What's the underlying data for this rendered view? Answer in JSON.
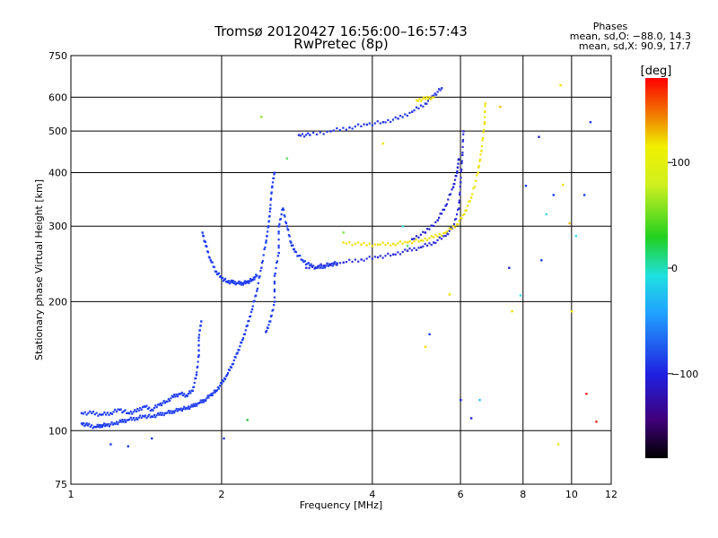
{
  "header": {
    "title_line1": "Tromsø 20120427 16:56:00–16:57:43",
    "title_line2": "RwPretec (8p)"
  },
  "phases_box": {
    "title": "Phases",
    "line_o": "mean, sd,O: −88.0, 14.3",
    "line_x": "mean, sd,X:  90.9, 17.7"
  },
  "colorbar": {
    "unit_label": "[deg]",
    "ticks": [
      {
        "label": "100",
        "value": 100
      },
      {
        "label": "0",
        "value": 0
      },
      {
        "label": "−100",
        "value": -100
      }
    ],
    "range": [
      -180,
      180
    ]
  },
  "chart_data": {
    "type": "scatter",
    "title": "Tromsø 20120427 16:56:00–16:57:43",
    "subtitle": "RwPretec (8p)",
    "xlabel": "Frequency [MHz]",
    "ylabel": "Stationary phase Virtual Height [km]",
    "x_scale": "log",
    "y_scale": "log",
    "xlim": [
      1,
      12
    ],
    "ylim": [
      75,
      750
    ],
    "x_ticks": [
      {
        "label": "1",
        "value": 1
      },
      {
        "label": "2",
        "value": 2
      },
      {
        "label": "4",
        "value": 4
      },
      {
        "label": "6",
        "value": 6
      },
      {
        "label": "8",
        "value": 8
      },
      {
        "label": "10",
        "value": 10
      },
      {
        "label": "12",
        "value": 12
      }
    ],
    "y_ticks": [
      {
        "label": "750",
        "value": 750
      },
      {
        "label": "600",
        "value": 600
      },
      {
        "label": "500",
        "value": 500
      },
      {
        "label": "400",
        "value": 400
      },
      {
        "label": "300",
        "value": 300
      },
      {
        "label": "200",
        "value": 200
      },
      {
        "label": "100",
        "value": 100
      },
      {
        "label": "75",
        "value": 75
      }
    ],
    "grid": true,
    "color_variable": "phase (deg)",
    "series": [
      {
        "color": "#1e3cf0",
        "phase": -95,
        "points": [
          [
            1.05,
            104
          ],
          [
            1.08,
            103
          ],
          [
            1.12,
            102
          ],
          [
            1.15,
            103
          ],
          [
            1.18,
            103
          ],
          [
            1.22,
            104
          ],
          [
            1.26,
            105
          ],
          [
            1.3,
            106
          ],
          [
            1.35,
            107
          ],
          [
            1.4,
            108
          ],
          [
            1.45,
            108
          ],
          [
            1.5,
            109
          ],
          [
            1.55,
            110
          ],
          [
            1.6,
            111
          ],
          [
            1.65,
            112
          ],
          [
            1.7,
            113
          ],
          [
            1.75,
            114
          ],
          [
            1.8,
            116
          ],
          [
            1.85,
            118
          ],
          [
            1.9,
            121
          ],
          [
            1.95,
            124
          ],
          [
            2.0,
            129
          ],
          [
            2.05,
            135
          ],
          [
            2.1,
            143
          ],
          [
            2.15,
            152
          ],
          [
            2.2,
            163
          ],
          [
            2.25,
            176
          ],
          [
            2.3,
            192
          ],
          [
            2.35,
            212
          ],
          [
            2.4,
            240
          ],
          [
            2.45,
            275
          ],
          [
            2.48,
            300
          ],
          [
            2.5,
            330
          ],
          [
            2.52,
            370
          ],
          [
            2.55,
            400
          ]
        ]
      },
      {
        "color": "#1e3cf0",
        "phase": -95,
        "points": [
          [
            1.05,
            110
          ],
          [
            1.1,
            110
          ],
          [
            1.15,
            109
          ],
          [
            1.2,
            110
          ],
          [
            1.25,
            112
          ],
          [
            1.3,
            110
          ],
          [
            1.35,
            111
          ],
          [
            1.4,
            114
          ],
          [
            1.45,
            112
          ],
          [
            1.5,
            115
          ],
          [
            1.55,
            117
          ],
          [
            1.6,
            120
          ],
          [
            1.65,
            122
          ],
          [
            1.7,
            121
          ],
          [
            1.75,
            124
          ],
          [
            1.78,
            135
          ],
          [
            1.8,
            150
          ],
          [
            1.8,
            165
          ],
          [
            1.82,
            180
          ]
        ]
      },
      {
        "color": "#1e3cf0",
        "phase": -95,
        "points": [
          [
            1.83,
            290
          ],
          [
            1.86,
            270
          ],
          [
            1.9,
            250
          ],
          [
            1.95,
            235
          ],
          [
            2.0,
            227
          ],
          [
            2.05,
            223
          ],
          [
            2.1,
            222
          ],
          [
            2.15,
            221
          ],
          [
            2.2,
            221
          ],
          [
            2.25,
            222
          ],
          [
            2.3,
            225
          ],
          [
            2.35,
            230
          ]
        ]
      },
      {
        "color": "#1e3cf0",
        "phase": -95,
        "points": [
          [
            2.45,
            170
          ],
          [
            2.5,
            180
          ],
          [
            2.55,
            200
          ],
          [
            2.55,
            230
          ],
          [
            2.6,
            260
          ],
          [
            2.6,
            300
          ],
          [
            2.65,
            330
          ],
          [
            2.7,
            300
          ],
          [
            2.75,
            275
          ],
          [
            2.8,
            262
          ],
          [
            2.9,
            250
          ],
          [
            3.0,
            243
          ],
          [
            3.1,
            240
          ],
          [
            3.2,
            242
          ],
          [
            3.3,
            244
          ],
          [
            3.4,
            246
          ]
        ]
      },
      {
        "color": "#3030d8",
        "phase": -105,
        "points": [
          [
            2.95,
            240
          ],
          [
            3.2,
            243
          ],
          [
            3.5,
            247
          ],
          [
            3.8,
            251
          ],
          [
            4.1,
            254
          ],
          [
            4.4,
            258
          ],
          [
            4.7,
            263
          ],
          [
            5.0,
            268
          ],
          [
            5.3,
            275
          ],
          [
            5.6,
            285
          ],
          [
            5.8,
            300
          ],
          [
            5.95,
            330
          ],
          [
            6.0,
            380
          ],
          [
            6.05,
            440
          ],
          [
            6.08,
            500
          ]
        ]
      },
      {
        "color": "#2020d0",
        "phase": -110,
        "points": [
          [
            4.8,
            280
          ],
          [
            5.1,
            290
          ],
          [
            5.4,
            310
          ],
          [
            5.6,
            335
          ],
          [
            5.8,
            370
          ],
          [
            5.9,
            400
          ],
          [
            5.95,
            430
          ]
        ]
      },
      {
        "color": "#2436e6",
        "phase": -98,
        "points": [
          [
            2.85,
            490
          ],
          [
            3.0,
            490
          ],
          [
            3.3,
            500
          ],
          [
            3.6,
            510
          ],
          [
            3.9,
            518
          ],
          [
            4.2,
            525
          ],
          [
            4.5,
            535
          ],
          [
            4.8,
            555
          ],
          [
            5.1,
            580
          ],
          [
            5.3,
            605
          ],
          [
            5.5,
            630
          ]
        ]
      },
      {
        "color": "#f0e000",
        "phase": 90,
        "points": [
          [
            3.5,
            275
          ],
          [
            3.8,
            272
          ],
          [
            4.1,
            272
          ],
          [
            4.4,
            273
          ],
          [
            4.7,
            275
          ],
          [
            5.0,
            278
          ],
          [
            5.3,
            283
          ],
          [
            5.6,
            290
          ],
          [
            5.9,
            303
          ],
          [
            6.1,
            320
          ],
          [
            6.3,
            350
          ],
          [
            6.5,
            400
          ],
          [
            6.6,
            450
          ],
          [
            6.7,
            520
          ],
          [
            6.72,
            580
          ]
        ]
      },
      {
        "color": "#f0e000",
        "phase": 90,
        "points": [
          [
            4.9,
            590
          ],
          [
            5.1,
            595
          ],
          [
            5.3,
            600
          ]
        ]
      }
    ],
    "scattered_points": [
      [
        1.2,
        93,
        "#1e3cf0"
      ],
      [
        1.3,
        92,
        "#1e3cf0"
      ],
      [
        1.45,
        96,
        "#1e3cf0"
      ],
      [
        2.02,
        96,
        "#1e3cf0"
      ],
      [
        2.25,
        106,
        "#30c040"
      ],
      [
        2.4,
        540,
        "#90e030"
      ],
      [
        2.7,
        432,
        "#60e060"
      ],
      [
        3.5,
        290,
        "#80e040"
      ],
      [
        4.2,
        468,
        "#f0e000"
      ],
      [
        4.6,
        300,
        "#40d8e0"
      ],
      [
        4.7,
        270,
        "#60e060"
      ],
      [
        5.1,
        157,
        "#f0e000"
      ],
      [
        5.2,
        168,
        "#1e3cf0"
      ],
      [
        5.7,
        208,
        "#f0e000"
      ],
      [
        6.0,
        118,
        "#2020d0"
      ],
      [
        6.3,
        107,
        "#2020d0"
      ],
      [
        6.55,
        118,
        "#30c0f0"
      ],
      [
        7.2,
        570,
        "#f0c000"
      ],
      [
        7.5,
        240,
        "#2020d0"
      ],
      [
        7.6,
        190,
        "#f0e000"
      ],
      [
        7.9,
        207,
        "#40d8e0"
      ],
      [
        8.1,
        373,
        "#1e3cf0"
      ],
      [
        8.6,
        485,
        "#2020d0"
      ],
      [
        8.7,
        250,
        "#1e3cf0"
      ],
      [
        8.9,
        320,
        "#40d8e0"
      ],
      [
        9.2,
        355,
        "#1e3cf0"
      ],
      [
        9.6,
        375,
        "#f0e000"
      ],
      [
        9.9,
        305,
        "#f0c000"
      ],
      [
        10.2,
        285,
        "#40d8e0"
      ],
      [
        10.6,
        355,
        "#1e3cf0"
      ],
      [
        10.9,
        525,
        "#1e3cf0"
      ],
      [
        11.2,
        105,
        "#f02020"
      ],
      [
        9.5,
        640,
        "#f0e000"
      ],
      [
        9.4,
        93,
        "#f0e000"
      ],
      [
        10.0,
        190,
        "#f0e000"
      ],
      [
        10.7,
        122,
        "#f02020"
      ]
    ]
  }
}
